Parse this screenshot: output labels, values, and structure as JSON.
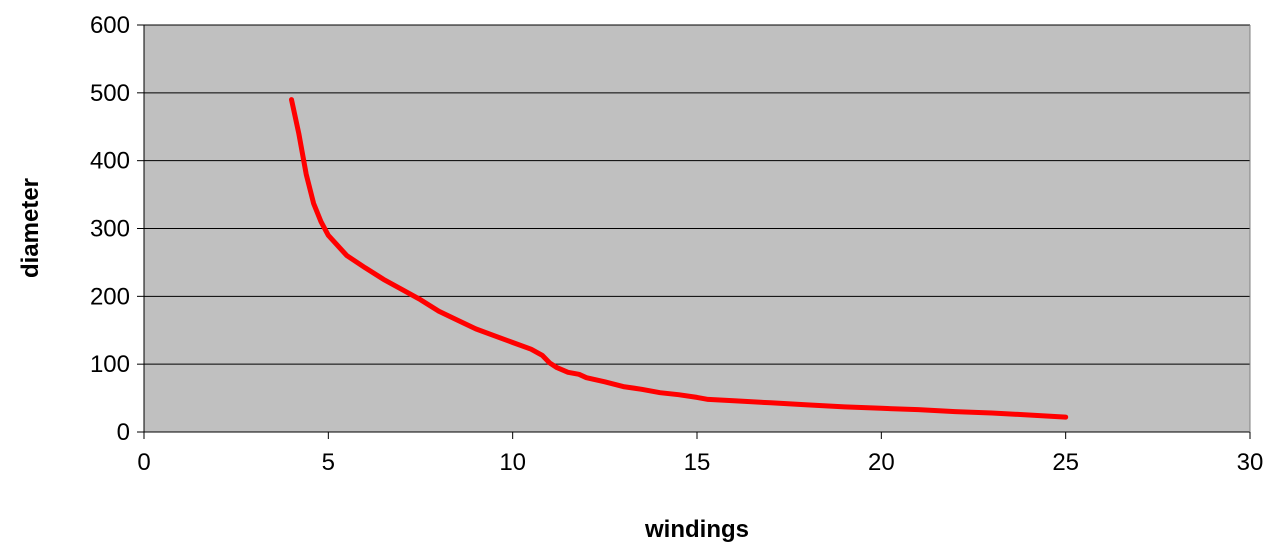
{
  "chart_data": {
    "type": "line",
    "title": "",
    "xlabel": "windings",
    "ylabel": "diameter",
    "xlim": [
      0,
      30
    ],
    "ylim": [
      0,
      600
    ],
    "x_ticks": [
      0,
      5,
      10,
      15,
      20,
      25,
      30
    ],
    "y_ticks": [
      0,
      100,
      200,
      300,
      400,
      500,
      600
    ],
    "grid": "horizontal",
    "legend": "none",
    "plot_background": "#c0c0c0",
    "series": [
      {
        "color": "#ff0000",
        "x": [
          4,
          4.2,
          4.4,
          4.6,
          4.8,
          5,
          5.5,
          6,
          6.5,
          7,
          7.5,
          8,
          8.5,
          9,
          9.5,
          10,
          10.5,
          10.8,
          11,
          11.2,
          11.5,
          11.8,
          12,
          12.5,
          13,
          13.5,
          14,
          14.5,
          15,
          15.3,
          16,
          17,
          18,
          19,
          20,
          21,
          22,
          23,
          24,
          25
        ],
        "y": [
          490,
          440,
          380,
          337,
          310,
          290,
          260,
          242,
          225,
          210,
          195,
          178,
          165,
          152,
          142,
          132,
          122,
          113,
          102,
          95,
          88,
          85,
          80,
          74,
          67,
          63,
          58,
          55,
          51,
          48,
          46,
          43,
          40,
          37,
          35,
          33,
          30,
          28,
          25,
          22
        ]
      }
    ]
  }
}
